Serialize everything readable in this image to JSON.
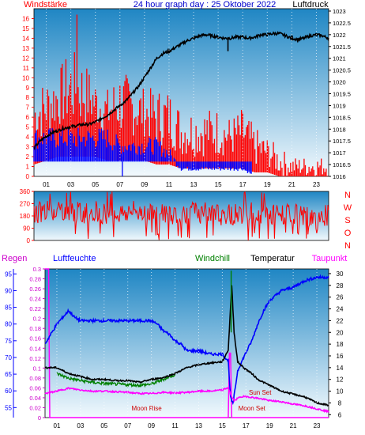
{
  "title": "24 hour graph day : 25 Oktober 2022",
  "colors": {
    "wind": "#ff0000",
    "gust": "#0000ff",
    "pressure": "#000000",
    "humidity": "#0000ff",
    "windchill": "#008000",
    "temperature": "#000000",
    "dewpoint": "#ff00ff",
    "rain": "#ff00ff",
    "sky_top": "#1f86c4",
    "sky_bottom": "#f2f9fd"
  },
  "hour_labels": [
    "01",
    "03",
    "05",
    "07",
    "09",
    "11",
    "13",
    "15",
    "17",
    "19",
    "21",
    "23"
  ],
  "chart_data": [
    {
      "type": "line",
      "left_label": "Windstärke",
      "right_label": "Luftdruck",
      "left_ticks": [
        "0",
        "1",
        "2",
        "3",
        "4",
        "5",
        "6",
        "7",
        "8",
        "9",
        "10",
        "11",
        "12",
        "13",
        "14",
        "15",
        "16"
      ],
      "right_ticks": [
        "1016",
        "1016.5",
        "1017",
        "1017.5",
        "1018",
        "1018.5",
        "1019",
        "1019.5",
        "1020",
        "1020.5",
        "1021",
        "1021.5",
        "1022",
        "1022.5",
        "1023"
      ],
      "left_ylim": [
        0,
        17
      ],
      "right_ylim": [
        1016,
        1023.1
      ],
      "x_range_hours": [
        0,
        24
      ],
      "series": [
        {
          "name": "Luftdruck",
          "axis": "right",
          "x": [
            0,
            0.5,
            1,
            1.5,
            2,
            2.5,
            3,
            3.5,
            4,
            4.5,
            5,
            5.5,
            6,
            6.5,
            7,
            7.5,
            8,
            8.5,
            9,
            9.5,
            10,
            10.5,
            11,
            11.5,
            12,
            12.5,
            13,
            13.5,
            14,
            14.5,
            15,
            15.5,
            16,
            16.5,
            17,
            17.5,
            18,
            18.5,
            19,
            19.5,
            20,
            20.5,
            21,
            21.5,
            22,
            22.5,
            23,
            23.5,
            24
          ],
          "values": [
            1017.2,
            1017.5,
            1017.7,
            1017.85,
            1017.95,
            1018.05,
            1018.1,
            1018.15,
            1018.2,
            1018.2,
            1018.3,
            1018.45,
            1018.6,
            1018.8,
            1019.0,
            1019.2,
            1019.5,
            1019.8,
            1020.2,
            1020.6,
            1021.0,
            1021.2,
            1021.3,
            1021.45,
            1021.6,
            1021.75,
            1021.85,
            1021.95,
            1022.0,
            1021.95,
            1021.9,
            1021.85,
            1021.85,
            1021.9,
            1021.9,
            1021.85,
            1021.9,
            1022.0,
            1022.0,
            1022.05,
            1022.05,
            1021.95,
            1021.85,
            1021.8,
            1021.85,
            1021.95,
            1022.0,
            1021.95,
            1021.85
          ]
        },
        {
          "name": "Windstärke (max)",
          "axis": "left",
          "x": [
            0,
            1,
            2,
            3,
            4,
            5,
            6,
            7,
            8,
            9,
            10,
            11,
            12,
            13,
            14,
            15,
            16,
            17,
            18,
            19,
            20,
            21,
            22,
            23,
            24
          ],
          "values": [
            9,
            10,
            11,
            13,
            12,
            10,
            9,
            11,
            10,
            9,
            9,
            9,
            7,
            7,
            7,
            7,
            6,
            7,
            5,
            4,
            3,
            2,
            2,
            2,
            2
          ]
        },
        {
          "name": "Windstärke (min)",
          "axis": "left",
          "x": [
            0,
            1,
            2,
            3,
            4,
            5,
            6,
            7,
            8,
            9,
            10,
            11,
            12,
            13,
            14,
            15,
            16,
            17,
            18,
            19,
            20,
            21,
            22,
            23,
            24
          ],
          "values": [
            3,
            4,
            5,
            5,
            5,
            5,
            4,
            4,
            4,
            4,
            3,
            3,
            2,
            2,
            2,
            2,
            2,
            2,
            1,
            1,
            0,
            0,
            0,
            0,
            0
          ]
        },
        {
          "name": "Böen",
          "axis": "left",
          "x": [
            0,
            1,
            2,
            3,
            4,
            5,
            6,
            7,
            8,
            9,
            10,
            11,
            12,
            13,
            14,
            15,
            16,
            17,
            18,
            19,
            20,
            21,
            22,
            23,
            24
          ],
          "values": [
            5,
            5,
            5,
            5,
            5,
            5,
            5,
            4,
            4,
            4,
            4,
            3,
            1,
            1,
            1,
            1,
            1,
            1,
            0,
            0,
            0,
            0,
            0,
            0,
            0
          ]
        }
      ]
    },
    {
      "type": "line",
      "ticks": [
        "0",
        "90",
        "180",
        "270",
        "360"
      ],
      "ylim": [
        0,
        360
      ],
      "compass": [
        "N",
        "W",
        "S",
        "O",
        "N"
      ],
      "x_range_hours": [
        0,
        24
      ],
      "series": [
        {
          "name": "Windrichtung",
          "x": [
            0,
            1,
            2,
            3,
            4,
            5,
            6,
            7,
            8,
            9,
            10,
            11,
            12,
            13,
            14,
            15,
            16,
            17,
            18,
            19,
            20,
            21,
            22,
            23,
            24
          ],
          "values": [
            200,
            220,
            230,
            210,
            200,
            220,
            190,
            200,
            210,
            220,
            200,
            190,
            200,
            210,
            200,
            190,
            190,
            200,
            210,
            190,
            180,
            200,
            170,
            150,
            190
          ]
        }
      ]
    },
    {
      "type": "line",
      "labels": [
        "Regen",
        "Luftfeuchte",
        "Windchill",
        "Temperatur",
        "Taupunkt"
      ],
      "humidity_ticks": [
        "55",
        "60",
        "65",
        "70",
        "75",
        "80",
        "85",
        "90",
        "95"
      ],
      "humidity_ylim": [
        52,
        96.5
      ],
      "rain_ticks": [
        "0",
        "0.02",
        "0.04",
        "0.06",
        "0.08",
        "0.1",
        "0.12",
        "0.14",
        "0.16",
        "0.18",
        "0.2",
        "0.22",
        "0.24",
        "0.26",
        "0.28",
        "0.3"
      ],
      "rain_ylim": [
        0,
        0.3
      ],
      "temp_ticks": [
        "6",
        "8",
        "10",
        "12",
        "14",
        "16",
        "18",
        "20",
        "22",
        "24",
        "26",
        "28",
        "30"
      ],
      "temp_ylim": [
        5.5,
        30.8
      ],
      "annotations": [
        "Moon Rise",
        "Sun Set",
        "Moon Set"
      ],
      "x_range_hours": [
        0,
        24
      ],
      "series": [
        {
          "name": "Luftfeuchte",
          "axis": "humidity",
          "x": [
            0,
            0.5,
            1,
            1.5,
            2,
            2.5,
            3,
            4,
            5,
            6,
            7,
            8,
            9,
            9.5,
            10,
            10.5,
            11,
            11.5,
            12,
            13,
            14,
            15,
            15.5,
            15.7,
            15.9,
            16.1,
            16.3,
            16.8,
            17.5,
            18,
            18.5,
            19,
            20,
            21,
            22,
            23,
            24
          ],
          "values": [
            74,
            77,
            80,
            82,
            84,
            82,
            81,
            81,
            81,
            81,
            81,
            81,
            81,
            80,
            78,
            77,
            75,
            74,
            72,
            72,
            71,
            71,
            69,
            58,
            56,
            61,
            66,
            70,
            75,
            80,
            84,
            87,
            90,
            91,
            93,
            94,
            94
          ]
        },
        {
          "name": "Temperatur",
          "axis": "temp",
          "x": [
            0,
            1,
            2,
            3,
            4,
            5,
            6,
            7,
            8,
            9,
            10,
            11,
            12,
            13,
            14,
            15,
            15.5,
            15.8,
            16,
            16.3,
            16.8,
            17.5,
            18,
            19,
            20,
            21,
            22,
            23,
            24
          ],
          "values": [
            14,
            14,
            13,
            12.5,
            12,
            12,
            11.8,
            11.8,
            11.5,
            12,
            12.3,
            13,
            14,
            14.5,
            14.8,
            15,
            17,
            28,
            20,
            15,
            14,
            13,
            12,
            11,
            10,
            9.5,
            9,
            8,
            7.6
          ]
        },
        {
          "name": "Windchill",
          "axis": "temp",
          "x": [
            1,
            2,
            3,
            4,
            5,
            6,
            7,
            8,
            9,
            10,
            11
          ],
          "values": [
            13,
            12.2,
            11.8,
            11.5,
            11.3,
            11.2,
            11.1,
            11,
            11.2,
            12,
            12.8
          ]
        },
        {
          "name": "Taupunkt",
          "axis": "temp",
          "x": [
            0,
            1,
            2,
            3,
            4,
            5,
            6,
            7,
            8,
            9,
            10,
            11,
            12,
            13,
            14,
            15,
            15.5,
            15.8,
            16,
            16.5,
            17,
            18,
            19,
            20,
            21,
            22,
            23,
            24
          ],
          "values": [
            9.6,
            10,
            10.5,
            10.2,
            10.0,
            10.0,
            9.9,
            9.8,
            9.6,
            9.6,
            9.8,
            9.7,
            9.8,
            10.0,
            10.0,
            10.2,
            10.6,
            9.0,
            8.4,
            9.0,
            9.1,
            8.8,
            8.4,
            8.2,
            7.8,
            7.5,
            7.0,
            6.5
          ]
        },
        {
          "name": "Regen",
          "axis": "rain",
          "x": [
            0,
            0.2,
            0.3,
            0.4,
            15.5,
            15.6,
            15.7,
            15.8,
            24
          ],
          "values": [
            0.3,
            0.3,
            0.3,
            0,
            0,
            0.13,
            0.13,
            0,
            0
          ]
        }
      ]
    }
  ]
}
